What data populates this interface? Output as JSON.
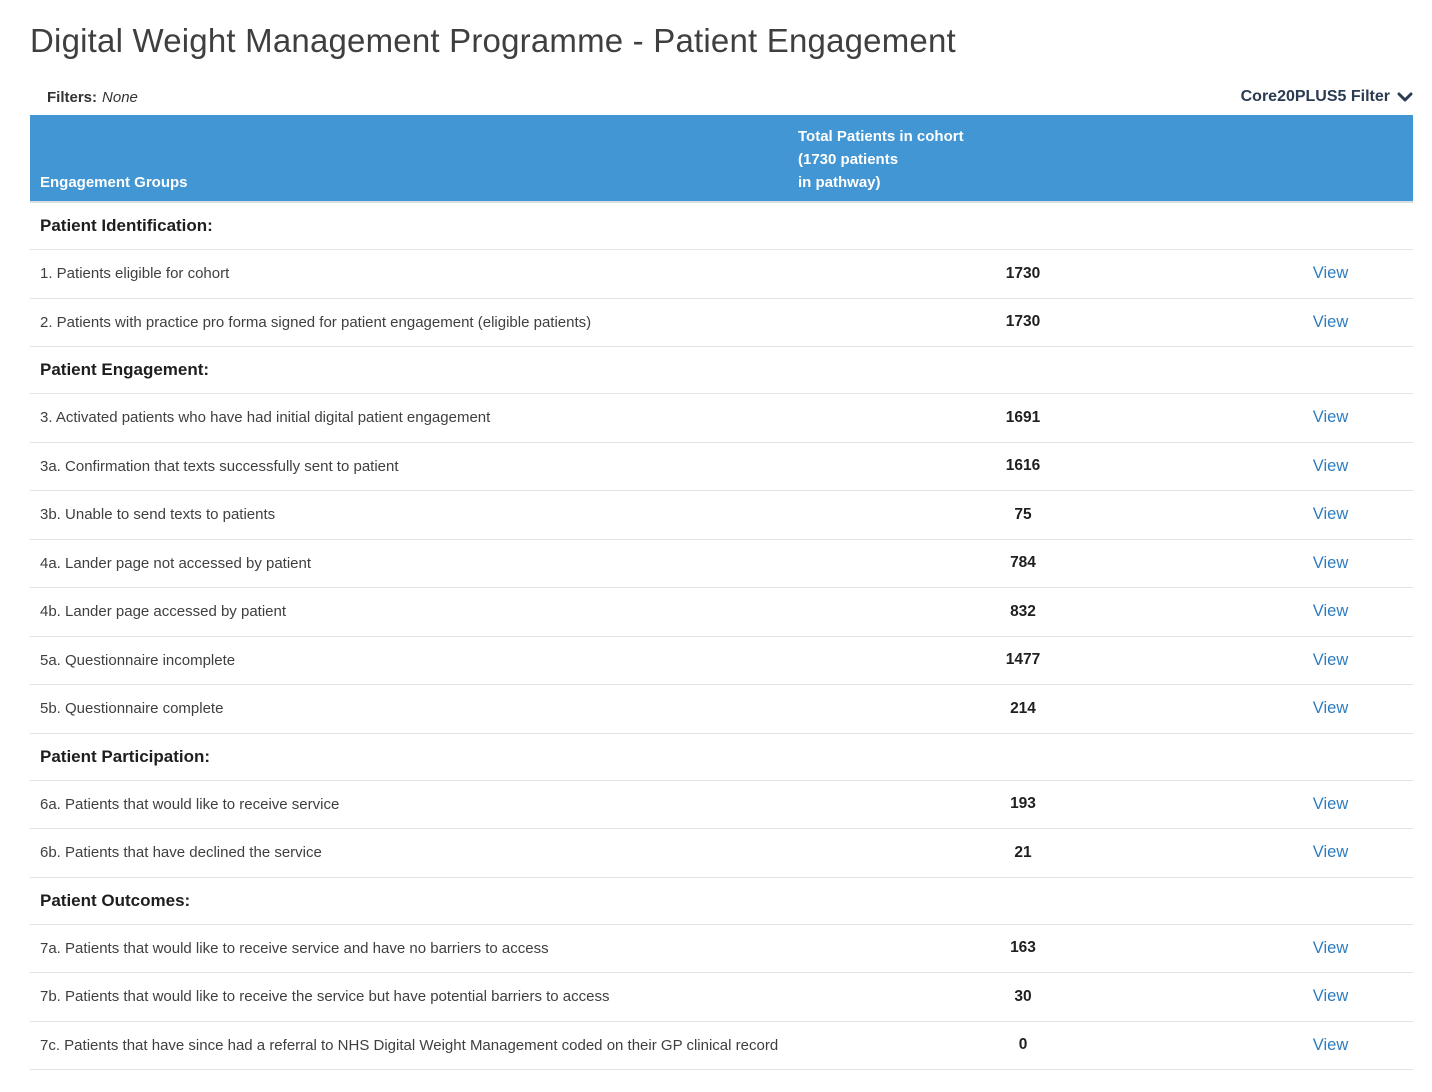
{
  "page": {
    "title": "Digital Weight Management Programme - Patient Engagement",
    "filters_label": "Filters:",
    "filters_value": "None",
    "filter_dropdown_label": "Core20PLUS5 Filter"
  },
  "colors": {
    "header_blue": "#4196d3",
    "link_blue": "#2e7cbf"
  },
  "table": {
    "columns": {
      "groups_header": "Engagement Groups",
      "total_header_line1": "Total Patients in cohort",
      "total_header_line2": "(1730 patients",
      "total_header_line3": "in pathway)"
    },
    "view_label": "View",
    "sections": [
      {
        "heading": "Patient Identification:",
        "rows": [
          {
            "label": "1. Patients eligible for cohort",
            "value": "1730"
          },
          {
            "label": "2. Patients with practice pro forma signed for patient engagement (eligible patients)",
            "value": "1730"
          }
        ]
      },
      {
        "heading": "Patient Engagement:",
        "rows": [
          {
            "label": "3. Activated patients who have had initial digital patient engagement",
            "value": "1691"
          },
          {
            "label": "3a. Confirmation that texts successfully sent to patient",
            "value": "1616"
          },
          {
            "label": "3b. Unable to send texts to patients",
            "value": "75"
          },
          {
            "label": "4a. Lander page not accessed by patient",
            "value": "784"
          },
          {
            "label": "4b. Lander page accessed by patient",
            "value": "832"
          },
          {
            "label": "5a. Questionnaire incomplete",
            "value": "1477"
          },
          {
            "label": "5b. Questionnaire complete",
            "value": "214"
          }
        ]
      },
      {
        "heading": "Patient Participation:",
        "rows": [
          {
            "label": "6a. Patients that would like to receive service",
            "value": "193"
          },
          {
            "label": "6b. Patients that have declined the service",
            "value": "21"
          }
        ]
      },
      {
        "heading": "Patient Outcomes:",
        "rows": [
          {
            "label": "7a. Patients that would like to receive service and have no barriers to access",
            "value": "163"
          },
          {
            "label": "7b. Patients that would like to receive the service but have potential barriers to access",
            "value": "30"
          },
          {
            "label": "7c. Patients that have since had a referral to NHS Digital Weight Management coded on their GP clinical record",
            "value": "0"
          }
        ]
      }
    ]
  }
}
